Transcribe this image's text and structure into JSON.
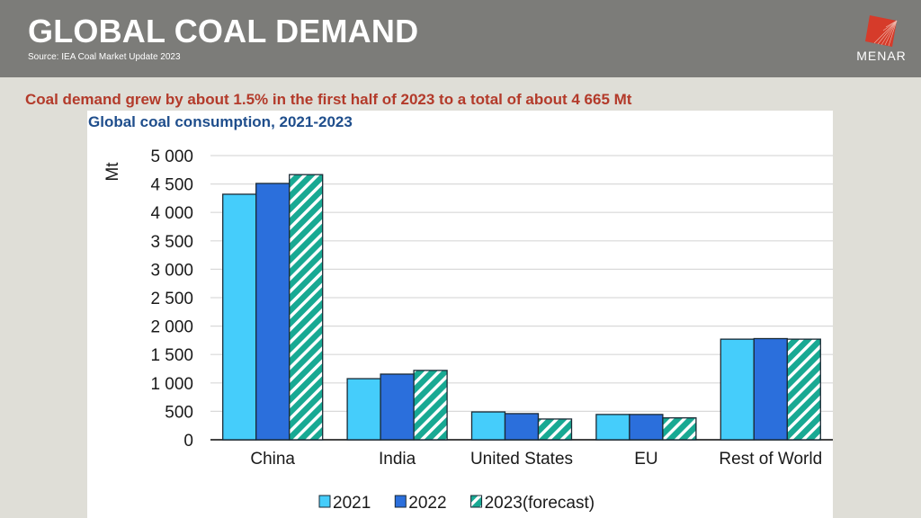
{
  "header": {
    "title": "GLOBAL COAL DEMAND",
    "source": "Source: IEA Coal Market Update 2023",
    "logo_text": "MENAR",
    "colors": {
      "band": "#7c7c79",
      "logo": "#d63b2a"
    }
  },
  "headline": "Coal demand grew by about 1.5% in the first half of 2023 to a total of about 4 665 Mt",
  "chart_data": {
    "type": "bar",
    "title": "Global coal consumption, 2021-2023",
    "xlabel": "",
    "ylabel": "Mt",
    "ylim": [
      0,
      5000
    ],
    "yticks": [
      0,
      500,
      1000,
      1500,
      2000,
      2500,
      3000,
      3500,
      4000,
      4500,
      5000
    ],
    "ytick_labels": [
      "0",
      "500",
      "1 000",
      "1 500",
      "2 000",
      "2 500",
      "3 000",
      "3 500",
      "4 000",
      "4 500",
      "5 000"
    ],
    "grid": true,
    "legend_position": "bottom",
    "categories": [
      "China",
      "India",
      "United States",
      "EU",
      "Rest of World"
    ],
    "series": [
      {
        "name": "2021",
        "color": "#45cdfb",
        "pattern": "solid",
        "values": [
          4320,
          1075,
          490,
          445,
          1770
        ]
      },
      {
        "name": "2022",
        "color": "#2b6fdc",
        "pattern": "solid",
        "values": [
          4510,
          1155,
          460,
          445,
          1780
        ]
      },
      {
        "name": "2023(forecast)",
        "color": "#18a993",
        "pattern": "hatched",
        "values": [
          4665,
          1220,
          365,
          385,
          1770
        ]
      }
    ]
  }
}
